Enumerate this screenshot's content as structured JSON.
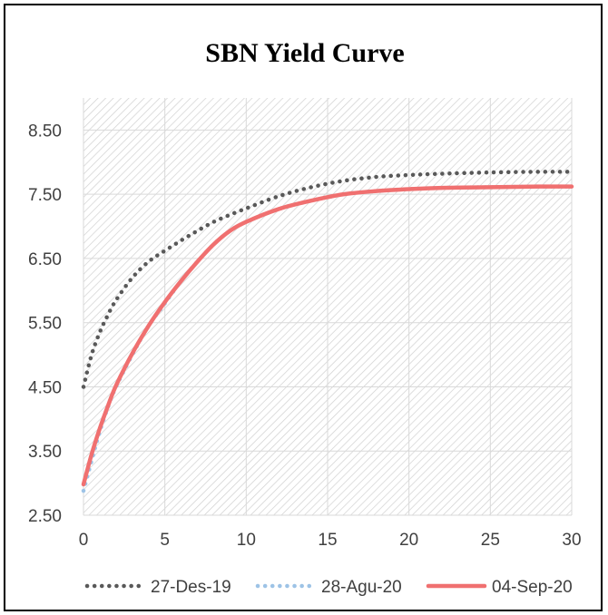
{
  "chart_data": {
    "type": "line",
    "title": "SBN Yield Curve",
    "xlabel": "",
    "ylabel": "",
    "xlim": [
      0,
      30
    ],
    "ylim": [
      2.5,
      9.0
    ],
    "x_ticks": [
      0,
      5,
      10,
      15,
      20,
      25,
      30
    ],
    "y_ticks": [
      "2.50",
      "3.50",
      "4.50",
      "5.50",
      "6.50",
      "7.50",
      "8.50"
    ],
    "grid": true,
    "legend_position": "bottom",
    "series": [
      {
        "name": "27-Des-19",
        "color": "#595959",
        "style": "dotted",
        "x": [
          0,
          0.5,
          1,
          1.5,
          2,
          3,
          4,
          5,
          6,
          7,
          8,
          9,
          10,
          12,
          14,
          16,
          18,
          20,
          22,
          25,
          28,
          30
        ],
        "y": [
          4.5,
          5.0,
          5.35,
          5.62,
          5.85,
          6.2,
          6.45,
          6.62,
          6.78,
          6.93,
          7.07,
          7.18,
          7.28,
          7.47,
          7.61,
          7.71,
          7.77,
          7.8,
          7.82,
          7.84,
          7.85,
          7.85
        ]
      },
      {
        "name": "28-Agu-20",
        "color": "#9dc3e6",
        "style": "dotted",
        "x": [
          0,
          0.5,
          1,
          1.5,
          2,
          3,
          4,
          5,
          6,
          7,
          8,
          9,
          10,
          12,
          14,
          16,
          18,
          20,
          22,
          25,
          28,
          30
        ],
        "y": [
          2.88,
          3.35,
          3.8,
          4.18,
          4.5,
          5.0,
          5.45,
          5.8,
          6.15,
          6.45,
          6.72,
          6.93,
          7.07,
          7.27,
          7.4,
          7.5,
          7.55,
          7.58,
          7.6,
          7.61,
          7.62,
          7.62
        ]
      },
      {
        "name": "04-Sep-20",
        "color": "#f07070",
        "style": "solid",
        "x": [
          0,
          0.5,
          1,
          1.5,
          2,
          3,
          4,
          5,
          6,
          7,
          8,
          9,
          10,
          12,
          14,
          16,
          18,
          20,
          22,
          25,
          28,
          30
        ],
        "y": [
          2.98,
          3.45,
          3.85,
          4.2,
          4.52,
          5.02,
          5.45,
          5.82,
          6.15,
          6.45,
          6.72,
          6.93,
          7.07,
          7.27,
          7.4,
          7.5,
          7.55,
          7.58,
          7.6,
          7.61,
          7.62,
          7.62
        ]
      }
    ]
  }
}
